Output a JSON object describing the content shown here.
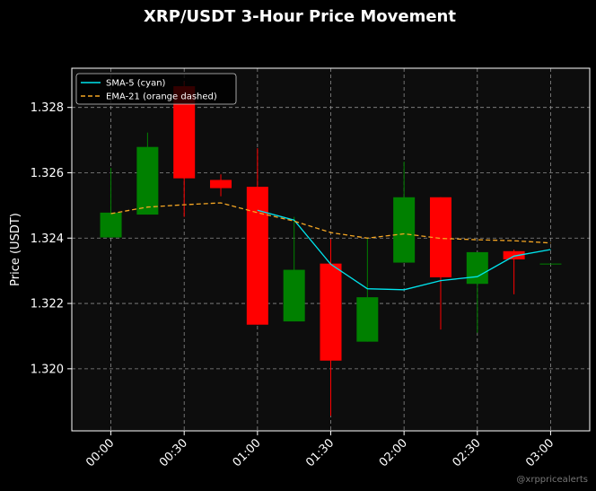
{
  "chart_data": {
    "type": "candlestick",
    "title": "XRP/USDT 3-Hour Price Movement",
    "ylabel": "Price (USDT)",
    "xlabel": "",
    "ylim": [
      1.3181,
      1.3292
    ],
    "x_ticks": [
      "00:00",
      "00:30",
      "01:00",
      "01:30",
      "02:00",
      "02:30",
      "03:00"
    ],
    "y_ticks": [
      "1.320",
      "1.322",
      "1.324",
      "1.326",
      "1.328"
    ],
    "y_tick_values": [
      1.32,
      1.322,
      1.324,
      1.326,
      1.328
    ],
    "x_minutes_range": [
      -16,
      196
    ],
    "grid": true,
    "legend_placement": "top-left",
    "candles": [
      {
        "time": "00:00",
        "open": 1.32402,
        "high": 1.32615,
        "low": 1.32402,
        "close": 1.32478
      },
      {
        "time": "00:15",
        "open": 1.32472,
        "high": 1.32723,
        "low": 1.32472,
        "close": 1.32679
      },
      {
        "time": "00:30",
        "open": 1.32865,
        "high": 1.3288,
        "low": 1.32465,
        "close": 1.32583
      },
      {
        "time": "00:45",
        "open": 1.32578,
        "high": 1.32595,
        "low": 1.32528,
        "close": 1.32553
      },
      {
        "time": "01:00",
        "open": 1.32557,
        "high": 1.32675,
        "low": 1.32135,
        "close": 1.32135
      },
      {
        "time": "01:15",
        "open": 1.32145,
        "high": 1.32465,
        "low": 1.32145,
        "close": 1.32303
      },
      {
        "time": "01:30",
        "open": 1.32322,
        "high": 1.32397,
        "low": 1.31856,
        "close": 1.32025
      },
      {
        "time": "01:45",
        "open": 1.32083,
        "high": 1.32398,
        "low": 1.32083,
        "close": 1.32219
      },
      {
        "time": "02:00",
        "open": 1.32325,
        "high": 1.32634,
        "low": 1.32325,
        "close": 1.32525
      },
      {
        "time": "02:15",
        "open": 1.32525,
        "high": 1.32525,
        "low": 1.3212,
        "close": 1.3228
      },
      {
        "time": "02:30",
        "open": 1.3226,
        "high": 1.32357,
        "low": 1.3211,
        "close": 1.32357
      },
      {
        "time": "02:45",
        "open": 1.3236,
        "high": 1.32365,
        "low": 1.32228,
        "close": 1.32335
      },
      {
        "time": "03:00",
        "open": 1.32322,
        "high": 1.32322,
        "low": 1.32322,
        "close": 1.32322
      }
    ],
    "series": [
      {
        "name": "SMA-5 (cyan)",
        "color": "#00e5ee",
        "style": "solid",
        "x": [
          "01:00",
          "01:15",
          "01:30",
          "01:45",
          "02:00",
          "02:15",
          "02:30",
          "02:45",
          "03:00"
        ],
        "values": [
          1.32485,
          1.32455,
          1.3232,
          1.32245,
          1.32242,
          1.3227,
          1.32282,
          1.32345,
          1.32365
        ]
      },
      {
        "name": "EMA-21 (orange dashed)",
        "color": "#f5a623",
        "style": "dashed",
        "x": [
          "00:00",
          "00:15",
          "00:30",
          "00:45",
          "01:00",
          "01:15",
          "01:30",
          "01:45",
          "02:00",
          "02:15",
          "02:30",
          "02:45",
          "03:00"
        ],
        "values": [
          1.32475,
          1.32495,
          1.32502,
          1.32508,
          1.32478,
          1.32452,
          1.32417,
          1.324,
          1.32413,
          1.32399,
          1.32395,
          1.32392,
          1.32385
        ]
      }
    ],
    "colors": {
      "up": "#008000",
      "down": "#ff0000",
      "background": "#000000",
      "plot_background": "#0d0d0d",
      "grid": "#8c8c8c",
      "axis": "#ffffff"
    },
    "watermark": "@xrppricealerts"
  }
}
